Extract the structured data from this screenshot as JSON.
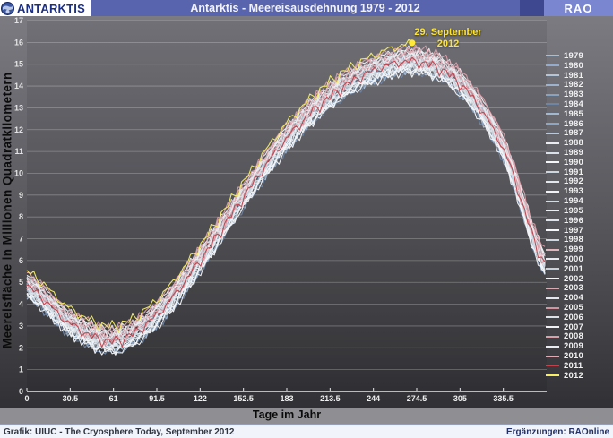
{
  "header": {
    "app_label": "ANTARKTIS",
    "title": "Antarktis - Meereisausdehnung 1979 - 2012",
    "brand": "RAO"
  },
  "footer": {
    "credit_left": "Grafik: UIUC - The Cryosphere Today, September 2012",
    "credit_right": "Ergänzungen: RAOnline"
  },
  "chart_data": {
    "type": "line",
    "title": "Antarktis - Meereisausdehnung 1979 - 2012",
    "xlabel": "Tage im Jahr",
    "ylabel": "Meereisfläche in Millionen Quadratkilometern",
    "xlim": [
      0,
      366
    ],
    "ylim": [
      0,
      17
    ],
    "x_ticks": [
      0,
      30.5,
      61,
      91.5,
      122,
      152.5,
      183,
      213.5,
      244,
      274.5,
      305,
      335.5
    ],
    "y_ticks": [
      0,
      1,
      2,
      3,
      4,
      5,
      6,
      7,
      8,
      9,
      10,
      11,
      12,
      13,
      14,
      15,
      16,
      17
    ],
    "grid": "horizontal",
    "legend_position": "right",
    "annotation": {
      "line1": "29. September",
      "line2": "2012",
      "day": 272,
      "value": 16.0,
      "color": "#ffe93a"
    },
    "x": [
      0,
      30.5,
      61,
      91.5,
      122,
      152.5,
      183,
      213.5,
      244,
      274.5,
      305,
      335.5,
      366
    ],
    "series": [
      {
        "name": "1979",
        "color": "#a9bdd3",
        "values": [
          4.5,
          2.8,
          2.0,
          3.2,
          5.7,
          8.6,
          11.3,
          13.2,
          14.4,
          14.8,
          13.8,
          10.8,
          5.4
        ]
      },
      {
        "name": "1980",
        "color": "#93accb",
        "values": [
          4.8,
          3.1,
          2.3,
          3.5,
          6.0,
          8.9,
          11.6,
          13.5,
          14.7,
          15.1,
          14.1,
          11.1,
          5.7
        ]
      },
      {
        "name": "1981",
        "color": "#b3c5d8",
        "values": [
          4.4,
          2.7,
          1.9,
          3.1,
          5.6,
          8.5,
          11.2,
          13.1,
          14.3,
          14.7,
          13.7,
          10.7,
          5.3
        ]
      },
      {
        "name": "1982",
        "color": "#9db3cd",
        "values": [
          5.0,
          3.3,
          2.5,
          3.7,
          6.2,
          9.1,
          11.8,
          13.7,
          14.9,
          15.3,
          14.3,
          11.3,
          5.9
        ]
      },
      {
        "name": "1983",
        "color": "#87a3c0",
        "values": [
          4.6,
          2.9,
          2.1,
          3.3,
          5.8,
          8.7,
          11.4,
          13.3,
          14.5,
          14.9,
          13.9,
          10.9,
          5.5
        ]
      },
      {
        "name": "1984",
        "color": "#6e86a6",
        "values": [
          4.3,
          2.6,
          1.8,
          3.0,
          5.5,
          8.4,
          11.1,
          13.0,
          14.2,
          14.6,
          13.6,
          10.6,
          5.2
        ]
      },
      {
        "name": "1985",
        "color": "#a2b7d0",
        "values": [
          4.7,
          3.0,
          2.2,
          3.4,
          5.9,
          8.8,
          11.5,
          13.4,
          14.6,
          15.0,
          14.0,
          11.0,
          5.6
        ]
      },
      {
        "name": "1986",
        "color": "#8ca7c6",
        "values": [
          4.4,
          2.8,
          2.0,
          3.1,
          5.6,
          8.6,
          11.2,
          13.2,
          14.3,
          14.8,
          13.7,
          10.8,
          5.4
        ]
      },
      {
        "name": "1987",
        "color": "#b8c9db",
        "values": [
          4.6,
          3.0,
          2.1,
          3.4,
          5.8,
          8.8,
          11.4,
          13.4,
          14.5,
          15.0,
          13.9,
          11.0,
          5.5
        ]
      },
      {
        "name": "1988",
        "color": "#e9edf2",
        "values": [
          4.5,
          2.9,
          2.0,
          3.2,
          5.7,
          8.7,
          11.3,
          13.2,
          14.4,
          14.9,
          13.8,
          10.9,
          5.4
        ]
      },
      {
        "name": "1989",
        "color": "#d9e0e8",
        "values": [
          4.8,
          3.2,
          2.3,
          3.5,
          6.0,
          9.0,
          11.6,
          13.6,
          14.7,
          15.2,
          14.1,
          11.2,
          5.7
        ]
      },
      {
        "name": "1990",
        "color": "#f4f6f8",
        "values": [
          4.3,
          2.7,
          1.8,
          3.0,
          5.5,
          8.5,
          11.1,
          13.1,
          14.2,
          14.7,
          13.6,
          10.7,
          5.2
        ]
      },
      {
        "name": "1991",
        "color": "#cdd6df",
        "values": [
          5.0,
          3.4,
          2.5,
          3.7,
          6.2,
          9.2,
          11.8,
          13.8,
          14.9,
          15.4,
          14.3,
          11.4,
          5.9
        ]
      },
      {
        "name": "1992",
        "color": "#e2e7ed",
        "values": [
          4.7,
          3.1,
          2.2,
          3.4,
          5.9,
          8.9,
          11.5,
          13.5,
          14.6,
          15.1,
          14.0,
          11.1,
          5.6
        ]
      },
      {
        "name": "1993",
        "color": "#f0f2f5",
        "values": [
          4.5,
          2.8,
          2.1,
          3.2,
          5.7,
          8.6,
          11.3,
          13.2,
          14.4,
          14.8,
          13.8,
          10.8,
          5.4
        ]
      },
      {
        "name": "1994",
        "color": "#d4dce4",
        "values": [
          4.9,
          3.2,
          2.4,
          3.6,
          6.1,
          9.0,
          11.7,
          13.6,
          14.8,
          15.2,
          14.2,
          11.2,
          5.8
        ]
      },
      {
        "name": "1995",
        "color": "#ebeff3",
        "values": [
          4.7,
          3.0,
          2.2,
          3.4,
          5.9,
          8.8,
          11.5,
          13.4,
          14.6,
          15.0,
          14.0,
          11.0,
          5.6
        ]
      },
      {
        "name": "1996",
        "color": "#dee4ea",
        "values": [
          4.6,
          2.9,
          2.1,
          3.3,
          5.8,
          8.7,
          11.4,
          13.3,
          14.5,
          14.9,
          13.9,
          10.9,
          5.5
        ]
      },
      {
        "name": "1997",
        "color": "#f6f7f9",
        "values": [
          4.4,
          2.7,
          1.9,
          3.1,
          5.6,
          8.5,
          11.2,
          13.1,
          14.3,
          14.7,
          13.7,
          10.7,
          5.3
        ]
      },
      {
        "name": "1998",
        "color": "#cfd8e0",
        "values": [
          4.8,
          3.1,
          2.3,
          3.5,
          6.0,
          8.9,
          11.6,
          13.5,
          14.7,
          15.1,
          14.1,
          11.1,
          5.7
        ]
      },
      {
        "name": "1999",
        "color": "#dfb6bd",
        "values": [
          5.0,
          3.3,
          2.5,
          3.7,
          6.2,
          9.1,
          11.8,
          13.7,
          14.9,
          15.3,
          14.3,
          11.3,
          5.9
        ]
      },
      {
        "name": "2000",
        "color": "#e6eaef",
        "values": [
          5.1,
          3.4,
          2.6,
          3.8,
          6.3,
          9.2,
          11.9,
          13.8,
          15.0,
          15.4,
          14.4,
          11.4,
          6.0
        ]
      },
      {
        "name": "2001",
        "color": "#c8d1da",
        "values": [
          4.7,
          3.0,
          2.2,
          3.4,
          5.9,
          8.8,
          11.5,
          13.4,
          14.6,
          15.0,
          14.0,
          11.0,
          5.6
        ]
      },
      {
        "name": "2002",
        "color": "#f2f4f6",
        "values": [
          4.5,
          2.8,
          2.0,
          3.2,
          5.7,
          8.6,
          11.3,
          13.2,
          14.4,
          14.8,
          13.8,
          10.8,
          5.4
        ]
      },
      {
        "name": "2003",
        "color": "#d8a9b2",
        "values": [
          5.1,
          3.4,
          2.6,
          3.8,
          6.3,
          9.2,
          11.9,
          13.8,
          15.0,
          15.4,
          14.4,
          11.4,
          6.0
        ]
      },
      {
        "name": "2004",
        "color": "#e4e8ee",
        "values": [
          5.2,
          3.5,
          2.7,
          3.9,
          6.4,
          9.3,
          12.0,
          13.9,
          15.1,
          15.5,
          14.5,
          11.5,
          6.1
        ]
      },
      {
        "name": "2005",
        "color": "#d2929e",
        "values": [
          4.9,
          3.2,
          2.4,
          3.6,
          6.1,
          9.0,
          11.7,
          13.6,
          14.8,
          15.2,
          14.2,
          11.2,
          5.8
        ]
      },
      {
        "name": "2006",
        "color": "#dbe1e8",
        "values": [
          5.1,
          3.4,
          2.6,
          3.8,
          6.3,
          9.1,
          11.9,
          13.7,
          15.0,
          15.3,
          14.4,
          11.3,
          6.0
        ]
      },
      {
        "name": "2007",
        "color": "#eff1f4",
        "values": [
          5.3,
          3.6,
          2.8,
          4.0,
          6.5,
          9.4,
          12.1,
          14.0,
          15.2,
          15.6,
          14.6,
          11.6,
          6.2
        ]
      },
      {
        "name": "2008",
        "color": "#d99fa9",
        "values": [
          5.4,
          3.7,
          2.9,
          4.1,
          6.6,
          9.5,
          12.2,
          14.1,
          15.3,
          15.7,
          14.7,
          11.7,
          6.3
        ]
      },
      {
        "name": "2009",
        "color": "#e8ecf0",
        "values": [
          5.1,
          3.4,
          2.6,
          3.8,
          6.3,
          9.2,
          11.9,
          13.8,
          15.0,
          15.4,
          14.4,
          11.4,
          6.0
        ]
      },
      {
        "name": "2010",
        "color": "#e2aab3",
        "values": [
          5.3,
          3.6,
          2.8,
          4.0,
          6.5,
          9.4,
          12.1,
          14.0,
          15.2,
          15.6,
          14.6,
          11.6,
          6.2
        ]
      },
      {
        "name": "2011",
        "color": "#c2414b",
        "values": [
          4.8,
          3.1,
          2.3,
          3.5,
          6.0,
          8.9,
          11.6,
          13.5,
          14.7,
          15.1,
          14.1,
          11.1,
          5.7
        ]
      },
      {
        "name": "2012",
        "color": "#f7ee63",
        "values": [
          5.5,
          3.8,
          3.0,
          4.2,
          6.7,
          9.6,
          12.3,
          14.2,
          15.4,
          16.0
        ],
        "end_day": 272
      }
    ]
  }
}
